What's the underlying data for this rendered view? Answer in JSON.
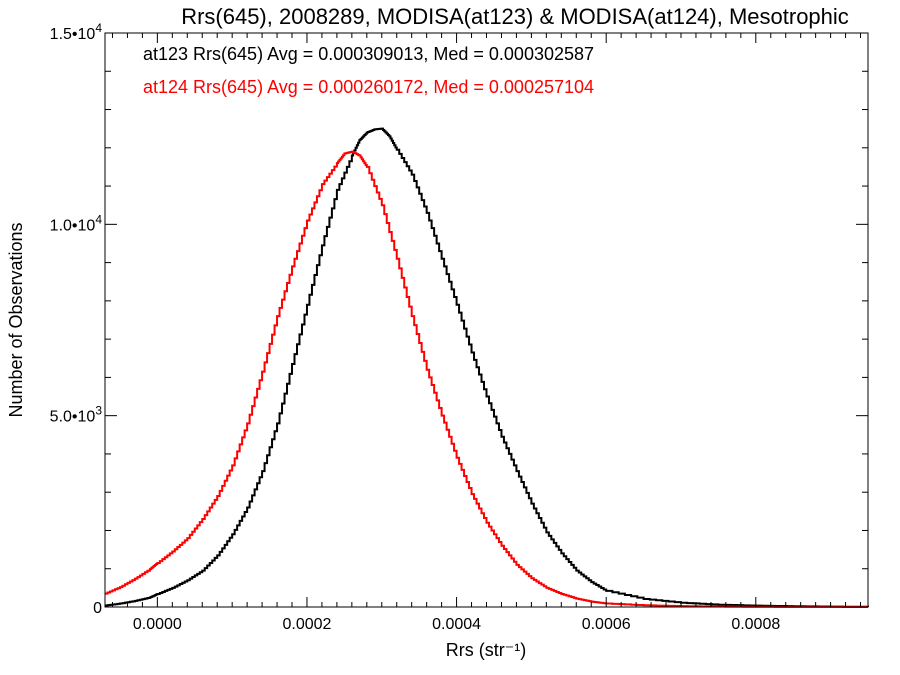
{
  "chart_data": {
    "type": "line",
    "title": "Rrs(645), 2008289, MODISA(at123) & MODISA(at124), Mesotrophic",
    "xlabel": "Rrs (str⁻¹)",
    "ylabel": "Number of Observations",
    "xlim": [
      -7e-05,
      0.00095
    ],
    "ylim": [
      0,
      15000
    ],
    "x_ticks": [
      {
        "value": 0.0,
        "label": "0.0000"
      },
      {
        "value": 0.0002,
        "label": "0.0002"
      },
      {
        "value": 0.0004,
        "label": "0.0004"
      },
      {
        "value": 0.0006,
        "label": "0.0006"
      },
      {
        "value": 0.0008,
        "label": "0.0008"
      }
    ],
    "y_ticks": [
      {
        "value": 0,
        "label": "0"
      },
      {
        "value": 5000,
        "label": "5.0•10",
        "exp": "3"
      },
      {
        "value": 10000,
        "label": "1.0•10",
        "exp": "4"
      },
      {
        "value": 15000,
        "label": "1.5•10",
        "exp": "4"
      }
    ],
    "grid": false,
    "legend": [
      {
        "text": "at123 Rrs(645) Avg = 0.000309013, Med = 0.000302587",
        "color": "#000000"
      },
      {
        "text": "at124 Rrs(645) Avg = 0.000260172, Med = 0.000257104",
        "color": "#ff0000"
      }
    ],
    "series": [
      {
        "color": "#000000",
        "style": "step",
        "x": [
          -7e-05,
          -5e-05,
          -3e-05,
          -1e-05,
          0.0,
          2e-05,
          4e-05,
          6e-05,
          8e-05,
          0.0001,
          0.00012,
          0.00014,
          0.00016,
          0.00018,
          0.0002,
          0.00022,
          0.00024,
          0.00026,
          0.00027,
          0.00028,
          0.00029,
          0.0003,
          0.00031,
          0.00032,
          0.00034,
          0.00036,
          0.00038,
          0.0004,
          0.00042,
          0.00044,
          0.00046,
          0.00048,
          0.0005,
          0.00052,
          0.00054,
          0.00056,
          0.00058,
          0.0006,
          0.00065,
          0.0007,
          0.00075,
          0.0008,
          0.00085,
          0.0009,
          0.00095
        ],
        "y": [
          40,
          90,
          160,
          250,
          340,
          500,
          700,
          950,
          1350,
          1900,
          2600,
          3550,
          4800,
          6350,
          7900,
          9450,
          10900,
          11800,
          12200,
          12400,
          12480,
          12500,
          12300,
          11950,
          11300,
          10300,
          9100,
          7900,
          6650,
          5500,
          4450,
          3550,
          2700,
          1950,
          1400,
          950,
          650,
          420,
          210,
          110,
          60,
          35,
          20,
          10,
          4
        ]
      },
      {
        "color": "#ff0000",
        "style": "step",
        "x": [
          -7e-05,
          -5e-05,
          -3e-05,
          -1e-05,
          0.0,
          2e-05,
          4e-05,
          6e-05,
          8e-05,
          0.0001,
          0.00012,
          0.00014,
          0.00016,
          0.00018,
          0.0002,
          0.00022,
          0.00024,
          0.00025,
          0.00026,
          0.00027,
          0.00028,
          0.0003,
          0.00032,
          0.00034,
          0.00036,
          0.00038,
          0.0004,
          0.00042,
          0.00044,
          0.00046,
          0.00048,
          0.0005,
          0.00052,
          0.00054,
          0.00056,
          0.00058,
          0.0006,
          0.00065,
          0.0007,
          0.00075,
          0.0008,
          0.00085,
          0.0009,
          0.00095
        ],
        "y": [
          350,
          520,
          740,
          990,
          1150,
          1450,
          1800,
          2300,
          2900,
          3700,
          4800,
          6150,
          7600,
          8900,
          10100,
          11050,
          11600,
          11850,
          11900,
          11800,
          11500,
          10500,
          9100,
          7600,
          6200,
          5000,
          3900,
          2950,
          2200,
          1600,
          1100,
          750,
          500,
          340,
          220,
          140,
          90,
          45,
          22,
          12,
          6,
          3,
          2,
          1
        ]
      }
    ]
  }
}
